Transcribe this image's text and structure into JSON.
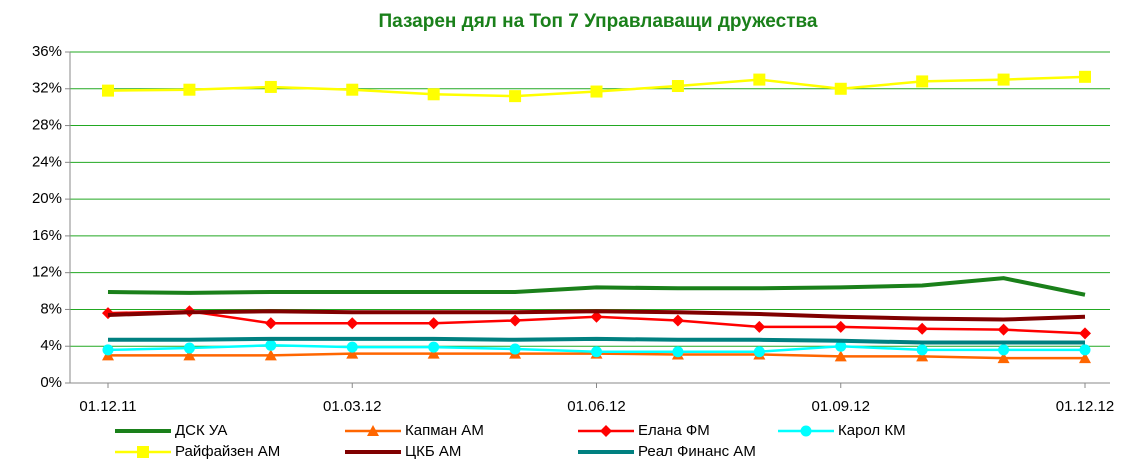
{
  "chart_data": {
    "type": "line",
    "title": "Пазарен дял на Топ 7 Управлаващи дружества",
    "categories": [
      "01.12.11",
      null,
      null,
      "01.03.12",
      null,
      null,
      "01.06.12",
      null,
      null,
      "01.09.12",
      null,
      null,
      "01.12.12"
    ],
    "ylim": [
      0,
      36
    ],
    "yticks": [
      {
        "value": 0,
        "label": "0%"
      },
      {
        "value": 4,
        "label": "4%"
      },
      {
        "value": 8,
        "label": "8%"
      },
      {
        "value": 12,
        "label": "12%"
      },
      {
        "value": 16,
        "label": "16%"
      },
      {
        "value": 20,
        "label": "20%"
      },
      {
        "value": 24,
        "label": "24%"
      },
      {
        "value": 28,
        "label": "28%"
      },
      {
        "value": 32,
        "label": "32%"
      },
      {
        "value": 36,
        "label": "36%"
      }
    ],
    "grid": true,
    "legend": "bottom",
    "series": [
      {
        "name": "ДСК УА",
        "color": "#1a801a",
        "marker": "none",
        "values": [
          9.9,
          9.8,
          9.9,
          9.9,
          9.9,
          9.9,
          10.4,
          10.3,
          10.3,
          10.4,
          10.6,
          11.4,
          9.6
        ]
      },
      {
        "name": "Капман АМ",
        "color": "#ff6600",
        "marker": "triangle",
        "values": [
          3.0,
          3.0,
          3.0,
          3.2,
          3.2,
          3.2,
          3.2,
          3.1,
          3.1,
          2.9,
          2.9,
          2.7,
          2.7
        ]
      },
      {
        "name": "Елана ФМ",
        "color": "#ff0000",
        "marker": "diamond",
        "values": [
          7.6,
          7.8,
          6.5,
          6.5,
          6.5,
          6.8,
          7.2,
          6.8,
          6.1,
          6.1,
          5.9,
          5.8,
          5.4
        ]
      },
      {
        "name": "Карол КМ",
        "color": "#00ffff",
        "marker": "circle",
        "values": [
          3.6,
          3.8,
          4.1,
          3.9,
          3.9,
          3.7,
          3.4,
          3.4,
          3.4,
          4.0,
          3.6,
          3.6,
          3.6
        ]
      },
      {
        "name": "Райфайзен АМ",
        "color": "#ffff00",
        "marker": "square",
        "values": [
          31.8,
          31.9,
          32.2,
          31.9,
          31.4,
          31.2,
          31.7,
          32.3,
          33.0,
          32.0,
          32.8,
          33.0,
          33.3
        ]
      },
      {
        "name": "ЦКБ АМ",
        "color": "#800000",
        "marker": "none",
        "values": [
          7.4,
          7.7,
          7.8,
          7.7,
          7.7,
          7.7,
          7.8,
          7.7,
          7.5,
          7.2,
          7.0,
          6.9,
          7.2
        ]
      },
      {
        "name": "Реал Финанс АМ",
        "color": "#008080",
        "marker": "none",
        "values": [
          4.7,
          4.7,
          4.8,
          4.8,
          4.8,
          4.7,
          4.8,
          4.7,
          4.7,
          4.6,
          4.4,
          4.4,
          4.4
        ]
      }
    ]
  }
}
